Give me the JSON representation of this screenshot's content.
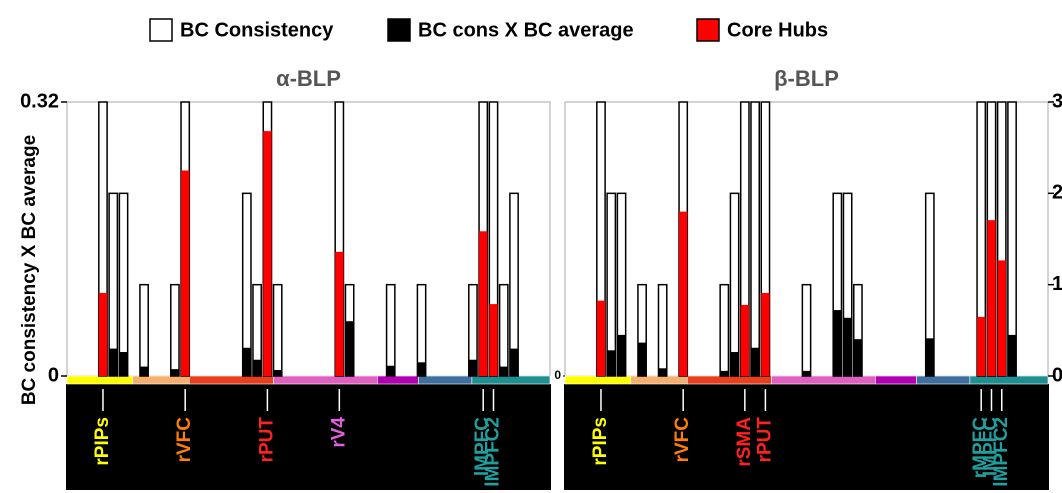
{
  "chart_data": [
    {
      "type": "bar",
      "title": "α-BLP",
      "ylabel": "BC consistency X BC average",
      "categories": [
        null,
        null,
        null,
        null,
        null,
        null,
        null,
        null,
        null,
        null,
        null,
        null,
        null,
        null,
        null,
        null,
        null,
        null,
        null,
        null,
        null,
        null,
        null,
        null,
        null,
        null,
        null,
        null,
        null,
        null,
        null,
        null,
        null,
        null,
        null,
        null,
        null,
        null,
        null,
        null,
        null,
        null,
        null,
        null,
        null,
        null,
        null
      ],
      "series": [
        {
          "name": "BC Consistency",
          "color": "#ffffff",
          "axis": "y2",
          "values": [
            null,
            null,
            null,
            3,
            2,
            2,
            null,
            1,
            null,
            null,
            1,
            3,
            null,
            null,
            null,
            null,
            null,
            2,
            1,
            3,
            1,
            null,
            null,
            null,
            null,
            null,
            3,
            1,
            null,
            null,
            null,
            1,
            null,
            null,
            1,
            null,
            null,
            null,
            null,
            1,
            3,
            3,
            1,
            2,
            null,
            null,
            null
          ]
        },
        {
          "name": "BC cons X BC average",
          "color": "#000000",
          "values": [
            null,
            null,
            null,
            null,
            0.032,
            0.028,
            null,
            0.011,
            null,
            null,
            0.008,
            null,
            null,
            null,
            null,
            null,
            null,
            0.033,
            0.019,
            null,
            0.007,
            null,
            null,
            null,
            null,
            null,
            null,
            0.064,
            null,
            null,
            null,
            0.012,
            null,
            null,
            0.016,
            null,
            null,
            null,
            null,
            0.019,
            null,
            null,
            0.011,
            0.032,
            null,
            null,
            null
          ]
        },
        {
          "name": "Core Hubs",
          "color": "#ff0000",
          "values": [
            null,
            null,
            null,
            0.097,
            null,
            null,
            null,
            null,
            null,
            null,
            null,
            0.24,
            null,
            null,
            null,
            null,
            null,
            null,
            null,
            0.286,
            null,
            null,
            null,
            null,
            null,
            null,
            0.145,
            null,
            null,
            null,
            null,
            null,
            null,
            null,
            null,
            null,
            null,
            null,
            null,
            null,
            0.169,
            0.084,
            null,
            null,
            null,
            null,
            null
          ]
        }
      ],
      "ylim": [
        0,
        0.32
      ],
      "yticks": [
        0,
        0.32
      ],
      "y2lim": [
        0,
        3
      ],
      "region_colors": [
        "#ffff00",
        "#f5b070",
        "#e8401c",
        "#e060c0",
        "#b000b0",
        "#3f6f9f",
        "#1f8f8f"
      ],
      "region_edges": [
        0,
        6.4,
        11.9,
        20.1,
        30.2,
        34.2,
        39.4,
        47
      ],
      "annotations": [
        {
          "text": "rPIPs",
          "slot": 3,
          "color": "#ffff00"
        },
        {
          "text": "rVFC",
          "slot": 11,
          "color": "#ff8000"
        },
        {
          "text": "rPUT",
          "slot": 19,
          "color": "#ff2020"
        },
        {
          "text": "rV4",
          "slot": 26,
          "color": "#e060e0"
        },
        {
          "text": "lMPFC",
          "slot": 40,
          "color": "#1fa0a0"
        },
        {
          "text": "lMPFC2",
          "slot": 41,
          "color": "#1fa0a0"
        }
      ]
    },
    {
      "type": "bar",
      "title": "β-BLP",
      "categories": [
        null,
        null,
        null,
        null,
        null,
        null,
        null,
        null,
        null,
        null,
        null,
        null,
        null,
        null,
        null,
        null,
        null,
        null,
        null,
        null,
        null,
        null,
        null,
        null,
        null,
        null,
        null,
        null,
        null,
        null,
        null,
        null,
        null,
        null,
        null,
        null,
        null,
        null,
        null,
        null,
        null,
        null,
        null,
        null,
        null,
        null,
        null
      ],
      "series": [
        {
          "name": "BC Consistency",
          "color": "#ffffff",
          "axis": "y2",
          "values": [
            null,
            null,
            null,
            3,
            2,
            2,
            null,
            1,
            null,
            1,
            null,
            3,
            null,
            null,
            null,
            1,
            2,
            3,
            3,
            3,
            null,
            null,
            null,
            1,
            null,
            null,
            2,
            2,
            1,
            null,
            null,
            null,
            null,
            null,
            null,
            2,
            null,
            null,
            null,
            null,
            3,
            3,
            3,
            3,
            null,
            null,
            null
          ]
        },
        {
          "name": "BC cons X BC average",
          "color": "#000000",
          "values": [
            null,
            null,
            null,
            null,
            0.03,
            0.048,
            null,
            0.039,
            null,
            0.009,
            null,
            null,
            null,
            null,
            null,
            0.006,
            0.028,
            null,
            0.033,
            null,
            null,
            null,
            null,
            0.006,
            null,
            null,
            0.077,
            0.068,
            0.043,
            null,
            null,
            null,
            null,
            null,
            null,
            0.044,
            null,
            null,
            null,
            null,
            null,
            null,
            null,
            0.048,
            null,
            null,
            null
          ]
        },
        {
          "name": "Core Hubs",
          "color": "#ff0000",
          "values": [
            null,
            null,
            null,
            0.088,
            null,
            null,
            null,
            null,
            null,
            null,
            null,
            0.192,
            null,
            null,
            null,
            null,
            null,
            0.083,
            null,
            0.097,
            null,
            null,
            null,
            null,
            null,
            null,
            null,
            null,
            null,
            null,
            null,
            null,
            null,
            null,
            null,
            null,
            null,
            null,
            null,
            null,
            0.069,
            0.182,
            0.135,
            null,
            null,
            null,
            null
          ]
        }
      ],
      "ylim": [
        0,
        0.32
      ],
      "yticks": [
        0
      ],
      "y2lim": [
        0,
        3
      ],
      "y2ticks": [
        0,
        1,
        2,
        3
      ],
      "region_colors": [
        "#ffff00",
        "#f5b070",
        "#e8401c",
        "#e060c0",
        "#b000b0",
        "#3f6f9f",
        "#1f8f8f"
      ],
      "region_edges": [
        0,
        6.4,
        11.9,
        20.1,
        30.2,
        34.2,
        39.4,
        47
      ],
      "annotations": [
        {
          "text": "rPIPs",
          "slot": 3,
          "color": "#ffff00"
        },
        {
          "text": "rVFC",
          "slot": 11,
          "color": "#ff8000"
        },
        {
          "text": "rSMA",
          "slot": 17,
          "color": "#ff2020"
        },
        {
          "text": "rPUT",
          "slot": 19,
          "color": "#ff2020"
        },
        {
          "text": "rMPFC",
          "slot": 40,
          "color": "#1fa0a0"
        },
        {
          "text": "lMPFC",
          "slot": 41,
          "color": "#1fa0a0"
        },
        {
          "text": "lMPFC2",
          "slot": 42,
          "color": "#1fa0a0"
        }
      ]
    }
  ]
}
